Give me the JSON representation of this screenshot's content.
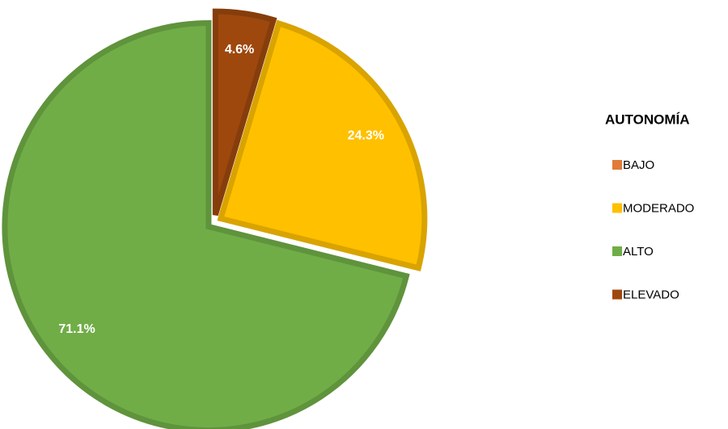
{
  "chart_data": {
    "type": "pie",
    "legend_title": "AUTONOMÍA",
    "categories": [
      "BAJO",
      "MODERADO",
      "ALTO",
      "ELEVADO"
    ],
    "values": [
      0,
      24.3,
      71.1,
      4.6
    ],
    "value_labels": [
      null,
      "24.3%",
      "71.1%",
      "4.6%"
    ],
    "colors": [
      "#e07b39",
      "#ffc000",
      "#70ad47",
      "#9e480e"
    ],
    "legend": "right"
  }
}
